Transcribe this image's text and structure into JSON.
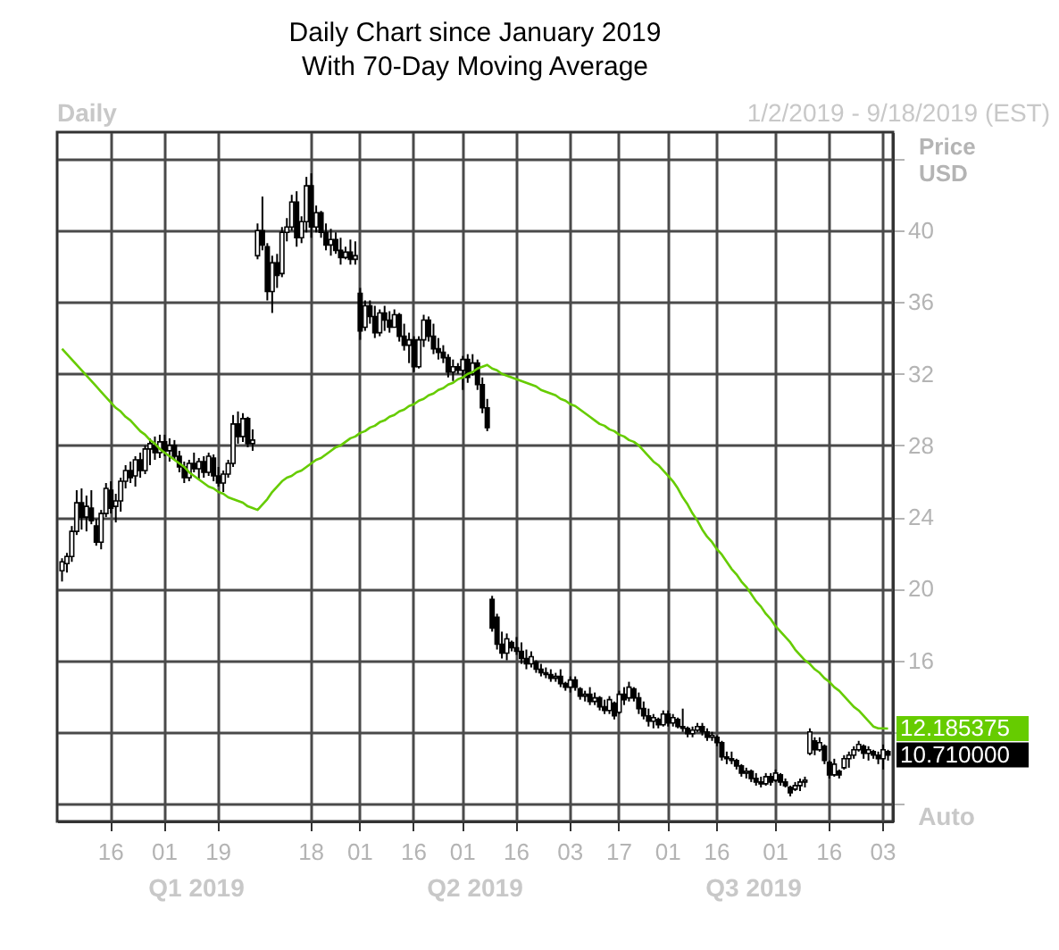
{
  "chart_data": {
    "type": "candlestick",
    "title": "Daily Chart since January 2019",
    "subtitle": "With 70-Day Moving Average",
    "ylabel": "Price USD",
    "color": "#000000",
    "categories": [
      null,
      null,
      null,
      null,
      null,
      null,
      null,
      null,
      null,
      null,
      "16",
      null,
      null,
      null,
      null,
      null,
      null,
      null,
      null,
      null,
      null,
      "01",
      null,
      null,
      null,
      null,
      null,
      null,
      null,
      null,
      null,
      null,
      "19",
      null,
      null,
      null,
      null,
      null,
      null,
      null,
      null,
      null,
      null,
      null,
      null,
      null,
      null,
      null,
      null,
      null,
      null,
      "18",
      null,
      null,
      null,
      null,
      null,
      null,
      null,
      null,
      null,
      "01",
      null,
      null,
      null,
      null,
      null,
      null,
      null,
      null,
      null,
      null,
      "16",
      null,
      null,
      null,
      null,
      null,
      null,
      null,
      null,
      null,
      "01",
      null,
      null,
      null,
      null,
      null,
      null,
      null,
      null,
      null,
      null,
      "16",
      null,
      null,
      null,
      null,
      null,
      null,
      null,
      null,
      null,
      null,
      "03",
      null,
      null,
      null,
      null,
      null,
      null,
      null,
      null,
      null,
      "17",
      null,
      null,
      null,
      null,
      null,
      null,
      null,
      null,
      null,
      "01",
      null,
      null,
      null,
      null,
      null,
      null,
      null,
      null,
      null,
      "16",
      null,
      null,
      null,
      null,
      null,
      null,
      null,
      null,
      null,
      null,
      null,
      "01",
      null,
      null,
      null,
      null,
      null,
      null,
      null,
      null,
      null,
      null,
      "16",
      null,
      null,
      null,
      null,
      null,
      null,
      null,
      null,
      null,
      null,
      "03",
      null
    ],
    "ohlc": [
      [
        21,
        21.7,
        20.4,
        21.5
      ],
      [
        21.4,
        22,
        20.9,
        21.8
      ],
      [
        21.8,
        23.5,
        21.5,
        23.2
      ],
      [
        23.2,
        25.5,
        23,
        24.8
      ],
      [
        24.8,
        25.6,
        23.3,
        24
      ],
      [
        24,
        25.2,
        23.2,
        24.6
      ],
      [
        24.5,
        25.5,
        23.6,
        23.8
      ],
      [
        23.5,
        23.9,
        22.4,
        22.6
      ],
      [
        22.6,
        24.4,
        22.2,
        24.2
      ],
      [
        24.2,
        25.9,
        24,
        25.6
      ],
      [
        25.5,
        26,
        24.2,
        24.5
      ],
      [
        24.6,
        25.3,
        23.7,
        24.9
      ],
      [
        24.9,
        26.2,
        24.3,
        26
      ],
      [
        26,
        26.9,
        25.6,
        26.6
      ],
      [
        26.6,
        27.1,
        25.9,
        26.2
      ],
      [
        26.3,
        27.4,
        25.7,
        27.2
      ],
      [
        27.2,
        27.6,
        26.2,
        26.6
      ],
      [
        26.6,
        28,
        26.4,
        27.8
      ],
      [
        27.8,
        28.4,
        26.9,
        28.1
      ],
      [
        28,
        28.5,
        27.2,
        27.6
      ],
      [
        27.6,
        28.6,
        27.3,
        28.2
      ],
      [
        28.2,
        28.6,
        27.4,
        27.7
      ],
      [
        27.7,
        28.4,
        27.1,
        28
      ],
      [
        28,
        28.3,
        27.2,
        27.4
      ],
      [
        27.4,
        27.7,
        26.5,
        26.8
      ],
      [
        26.8,
        27.1,
        25.9,
        26.2
      ],
      [
        26.2,
        27.2,
        26,
        27
      ],
      [
        27,
        27.6,
        26.5,
        26.7
      ],
      [
        26.7,
        27.3,
        26.1,
        27.1
      ],
      [
        27.1,
        27.4,
        26.2,
        26.5
      ],
      [
        26.5,
        27.6,
        26.3,
        27.4
      ],
      [
        27.3,
        27.5,
        26,
        26.3
      ],
      [
        26.3,
        26.8,
        25.7,
        25.9
      ],
      [
        25.9,
        26.6,
        25.4,
        26.4
      ],
      [
        26.4,
        27.2,
        26.2,
        27
      ],
      [
        27,
        29.7,
        26.8,
        29.2
      ],
      [
        29.2,
        29.9,
        28.1,
        28.5
      ],
      [
        28.5,
        29.8,
        28.2,
        29.5
      ],
      [
        29.5,
        29.6,
        27.9,
        28.1
      ],
      [
        28.1,
        28.9,
        27.7,
        28.3
      ],
      [
        38.6,
        40.4,
        38.4,
        40
      ],
      [
        40,
        41.9,
        38.9,
        39.2
      ],
      [
        39.1,
        39.3,
        36.1,
        36.6
      ],
      [
        36.6,
        38.6,
        35.4,
        38.2
      ],
      [
        38.2,
        38.7,
        36.8,
        37.5
      ],
      [
        37.6,
        40.2,
        37.4,
        39.9
      ],
      [
        39.9,
        40.7,
        39.4,
        40.2
      ],
      [
        40.2,
        42,
        40,
        41.6
      ],
      [
        41.6,
        42.2,
        39.1,
        39.6
      ],
      [
        39.6,
        40.8,
        39.3,
        40.5
      ],
      [
        40.5,
        43,
        39.9,
        42.5
      ],
      [
        42.5,
        43.2,
        39.6,
        40.2
      ],
      [
        40.2,
        41.4,
        39.9,
        41
      ],
      [
        41,
        41.1,
        39.6,
        39.9
      ],
      [
        39.9,
        40.4,
        38.9,
        39.2
      ],
      [
        39.2,
        40.1,
        38.6,
        39.5
      ],
      [
        39.5,
        39.9,
        38.7,
        38.9
      ],
      [
        38.9,
        39.6,
        38.1,
        38.5
      ],
      [
        38.5,
        39.1,
        38.4,
        38.8
      ],
      [
        38.8,
        39.5,
        38.1,
        38.4
      ],
      [
        38.4,
        39.4,
        38.1,
        38.6
      ],
      [
        36.5,
        36.8,
        33.9,
        34.4
      ],
      [
        34.6,
        36.1,
        34.4,
        35.8
      ],
      [
        35.8,
        36.1,
        34.8,
        35.2
      ],
      [
        35.2,
        35.8,
        34,
        34.3
      ],
      [
        34.3,
        35.6,
        34.1,
        35.4
      ],
      [
        35.4,
        35.8,
        34.4,
        35
      ],
      [
        35,
        35.5,
        34.3,
        34.6
      ],
      [
        34.6,
        35.6,
        34.6,
        35.3
      ],
      [
        35.3,
        35.4,
        33.8,
        34.1
      ],
      [
        34.1,
        34.8,
        33.3,
        33.6
      ],
      [
        33.6,
        34.3,
        32.6,
        33.9
      ],
      [
        33.9,
        34.1,
        32.1,
        32.4
      ],
      [
        32.4,
        34.1,
        32.3,
        33.9
      ],
      [
        33.9,
        35.3,
        33.5,
        35
      ],
      [
        35,
        35.2,
        33.8,
        34.1
      ],
      [
        34.1,
        34.8,
        33.1,
        33.4
      ],
      [
        33.4,
        34,
        32.8,
        33.2
      ],
      [
        33.2,
        33.6,
        32.6,
        32.9
      ],
      [
        32.9,
        33.1,
        31.8,
        32.1
      ],
      [
        32.1,
        32.8,
        31.6,
        32.4
      ],
      [
        32.4,
        32.6,
        32,
        32.2
      ],
      [
        32.2,
        33,
        31.1,
        32.8
      ],
      [
        32.8,
        33.1,
        31.5,
        31.8
      ],
      [
        32,
        33.1,
        31.9,
        32.6
      ],
      [
        32.6,
        32.8,
        31.1,
        31.4
      ],
      [
        31.4,
        31.8,
        29.8,
        30.1
      ],
      [
        30.1,
        30.6,
        28.8,
        29
      ],
      [
        19.4,
        19.6,
        17.6,
        17.8
      ],
      [
        18.4,
        18.6,
        16.6,
        16.9
      ],
      [
        16.9,
        17.6,
        16.1,
        16.4
      ],
      [
        16.4,
        17.5,
        16,
        17.2
      ],
      [
        17,
        17.1,
        16.5,
        16.7
      ],
      [
        16.7,
        17.3,
        16.3,
        16.5
      ],
      [
        16.5,
        17,
        15.8,
        16.1
      ],
      [
        16.1,
        16.6,
        15.5,
        15.8
      ],
      [
        15.8,
        16.5,
        15.6,
        16.2
      ],
      [
        15.9,
        16,
        15.3,
        15.5
      ],
      [
        15.5,
        15.8,
        15.1,
        15.3
      ],
      [
        15.3,
        15.6,
        15,
        15.2
      ],
      [
        15.2,
        15.5,
        14.8,
        15
      ],
      [
        15,
        15.3,
        14.8,
        15.1
      ],
      [
        15.1,
        15.5,
        14.5,
        14.7
      ],
      [
        14.7,
        14.8,
        14.3,
        14.5
      ],
      [
        14.5,
        15.1,
        14.2,
        14.9
      ],
      [
        14.9,
        15.1,
        14.3,
        14.5
      ],
      [
        14.4,
        14.5,
        13.8,
        14
      ],
      [
        14,
        14.3,
        13.7,
        14.1
      ],
      [
        14.1,
        14.5,
        13.5,
        13.7
      ],
      [
        13.7,
        14.2,
        13.5,
        13.9
      ],
      [
        13.9,
        14,
        13.2,
        13.4
      ],
      [
        13.4,
        13.8,
        13,
        13.2
      ],
      [
        13.2,
        14,
        13,
        13.8
      ],
      [
        13.6,
        13.7,
        12.7,
        12.9
      ],
      [
        13.1,
        14.3,
        13,
        14.1
      ],
      [
        14.1,
        14.5,
        13.5,
        13.8
      ],
      [
        13.9,
        14.8,
        13.7,
        14.5
      ],
      [
        14.4,
        14.5,
        13.7,
        13.9
      ],
      [
        13.9,
        14.2,
        13,
        13.3
      ],
      [
        13.3,
        13.7,
        12.7,
        12.9
      ],
      [
        12.9,
        13.3,
        12.3,
        12.6
      ],
      [
        12.6,
        13,
        12.2,
        12.8
      ],
      [
        12.7,
        12.8,
        12.2,
        12.4
      ],
      [
        12.4,
        13.2,
        12.3,
        13
      ],
      [
        13,
        13.2,
        12.3,
        12.5
      ],
      [
        12.5,
        13,
        12.3,
        12.8
      ],
      [
        12.7,
        12.8,
        12.2,
        12.3
      ],
      [
        12.3,
        13.3,
        12,
        12.2
      ],
      [
        12.2,
        12.3,
        11.7,
        11.9
      ],
      [
        11.9,
        12.3,
        11.7,
        12.1
      ],
      [
        12.1,
        12.5,
        12,
        12.3
      ],
      [
        12.3,
        12.5,
        11.8,
        12
      ],
      [
        12,
        12.2,
        11.5,
        11.7
      ],
      [
        11.7,
        12,
        11.5,
        11.8
      ],
      [
        11.7,
        11.8,
        11.2,
        11.4
      ],
      [
        11.4,
        11.5,
        10.4,
        10.6
      ],
      [
        10.6,
        10.9,
        10.2,
        10.5
      ],
      [
        10.5,
        10.9,
        10.2,
        10.4
      ],
      [
        10.4,
        10.5,
        9.9,
        10.1
      ],
      [
        10.1,
        10.2,
        9.5,
        9.7
      ],
      [
        9.7,
        10,
        9.4,
        9.8
      ],
      [
        9.8,
        9.9,
        9.2,
        9.4
      ],
      [
        9.4,
        9.7,
        9,
        9.2
      ],
      [
        9.2,
        9.5,
        8.9,
        9.1
      ],
      [
        9.1,
        9.7,
        9,
        9.5
      ],
      [
        9.5,
        9.7,
        9,
        9.2
      ],
      [
        9.3,
        9.9,
        9.2,
        9.7
      ],
      [
        9.6,
        9.7,
        9,
        9.2
      ],
      [
        9.2,
        9.4,
        8.9,
        9
      ],
      [
        8.9,
        9,
        8.4,
        8.6
      ],
      [
        8.8,
        9.2,
        8.7,
        9
      ],
      [
        9,
        9.4,
        8.7,
        9.2
      ],
      [
        9.2,
        9.5,
        8.9,
        9.3
      ],
      [
        10.8,
        12.2,
        10.7,
        12
      ],
      [
        11.5,
        11.7,
        10.7,
        11
      ],
      [
        11,
        11.7,
        10.9,
        11.4
      ],
      [
        11.2,
        11.3,
        10.2,
        10.4
      ],
      [
        10.3,
        10.4,
        9.4,
        9.6
      ],
      [
        9.6,
        10.5,
        9.5,
        10.2
      ],
      [
        9.8,
        9.9,
        9.4,
        9.6
      ],
      [
        10,
        10.7,
        9.9,
        10.5
      ],
      [
        10.5,
        10.9,
        10,
        10.7
      ],
      [
        10.7,
        11.2,
        10.5,
        11
      ],
      [
        11,
        11.5,
        10.9,
        11.3
      ],
      [
        11.2,
        11.3,
        10.5,
        10.8
      ],
      [
        10.8,
        11.2,
        10.4,
        11
      ],
      [
        10.9,
        11,
        10.5,
        10.7
      ],
      [
        10.7,
        10.9,
        10.2,
        10.5
      ],
      [
        10.5,
        11.3,
        9.9,
        11
      ],
      [
        10.9,
        11,
        10.4,
        10.71
      ]
    ],
    "series": [
      {
        "type": "line",
        "color": "#66cc00",
        "values": [
          33.4,
          33.1,
          32.8,
          32.5,
          32.2,
          31.9,
          31.6,
          31.3,
          31.0,
          30.7,
          30.4,
          30.1,
          29.9,
          29.6,
          29.4,
          29.1,
          28.8,
          28.6,
          28.3,
          28.1,
          27.8,
          27.6,
          27.4,
          27.2,
          27.0,
          26.8,
          26.5,
          26.3,
          26.1,
          25.9,
          25.7,
          25.6,
          25.4,
          25.3,
          25.1,
          25.0,
          24.9,
          24.8,
          24.6,
          24.5,
          24.4,
          24.7,
          25.0,
          25.4,
          25.7,
          26.0,
          26.2,
          26.3,
          26.5,
          26.6,
          26.8,
          27.0,
          27.2,
          27.3,
          27.5,
          27.7,
          27.9,
          28.0,
          28.2,
          28.4,
          28.5,
          28.7,
          28.8,
          29.0,
          29.1,
          29.3,
          29.4,
          29.6,
          29.7,
          29.9,
          30.0,
          30.2,
          30.3,
          30.5,
          30.6,
          30.8,
          30.9,
          31.1,
          31.2,
          31.4,
          31.5,
          31.7,
          31.8,
          32.0,
          32.1,
          32.3,
          32.4,
          32.5,
          32.3,
          32.2,
          32.0,
          31.9,
          31.8,
          31.7,
          31.6,
          31.5,
          31.4,
          31.3,
          31.1,
          31.0,
          30.9,
          30.8,
          30.6,
          30.5,
          30.3,
          30.2,
          30.0,
          29.8,
          29.6,
          29.4,
          29.2,
          29.1,
          28.9,
          28.8,
          28.6,
          28.5,
          28.3,
          28.2,
          28.0,
          27.7,
          27.4,
          27.1,
          26.9,
          26.6,
          26.3,
          26.0,
          25.6,
          25.1,
          24.7,
          24.2,
          23.8,
          23.3,
          22.9,
          22.6,
          22.2,
          21.9,
          21.5,
          21.1,
          20.8,
          20.4,
          20.1,
          19.7,
          19.3,
          19.0,
          18.6,
          18.3,
          17.9,
          17.6,
          17.3,
          17.0,
          16.6,
          16.3,
          16.0,
          15.8,
          15.5,
          15.3,
          15.0,
          14.8,
          14.5,
          14.3,
          14.0,
          13.7,
          13.4,
          13.2,
          12.9,
          12.6,
          12.3,
          12.2,
          12.2,
          12.185375
        ],
        "value_labels": [
          null,
          null,
          null,
          null,
          null,
          null,
          null,
          null,
          null,
          null,
          null,
          null,
          null,
          null,
          null,
          null,
          null,
          null,
          null,
          null,
          null,
          null,
          null,
          null,
          null,
          null,
          null,
          null,
          null,
          null,
          null,
          null,
          null,
          null,
          null,
          null,
          null,
          null,
          null,
          null,
          null,
          null,
          null,
          null,
          null,
          null,
          null,
          null,
          null,
          null,
          null,
          null,
          null,
          null,
          null,
          null,
          null,
          null,
          null,
          null,
          null,
          null,
          null,
          null,
          null,
          null,
          null,
          null,
          null,
          null,
          null,
          null,
          null,
          null,
          null,
          null,
          null,
          null,
          null,
          null,
          null,
          null,
          null,
          null,
          null,
          null,
          null,
          null,
          null,
          null,
          null,
          null,
          null,
          null,
          null,
          null,
          null,
          null,
          null,
          null,
          null,
          null,
          null,
          null,
          null,
          null,
          null,
          null,
          null,
          null,
          null,
          null,
          null,
          null,
          null,
          null,
          null,
          null,
          null,
          null,
          null,
          null,
          null,
          null,
          null,
          null,
          null,
          null,
          null,
          null,
          null,
          null,
          null,
          null,
          null,
          null,
          null,
          null,
          null,
          null,
          null,
          null,
          null,
          null,
          null,
          null,
          null,
          null,
          null,
          null,
          null,
          null,
          null,
          null,
          null,
          null,
          null,
          null,
          null,
          null,
          null,
          null,
          null,
          null,
          null,
          null,
          null,
          null,
          null,
          "12.185375"
        ]
      }
    ],
    "ylim": [
      7,
      45.5
    ],
    "yticks": [
      {
        "value": 8,
        "label": null
      },
      {
        "value": 12,
        "label": null
      },
      16,
      20,
      24,
      28,
      32,
      36,
      40,
      {
        "value": 44,
        "label": null
      }
    ],
    "grid": true,
    "annotations": [
      "Daily",
      "1/2/2019 - 9/18/2019 (EST)",
      "Q1 2019",
      "Q2 2019",
      "Q3 2019",
      "Auto",
      "10.710000"
    ]
  }
}
